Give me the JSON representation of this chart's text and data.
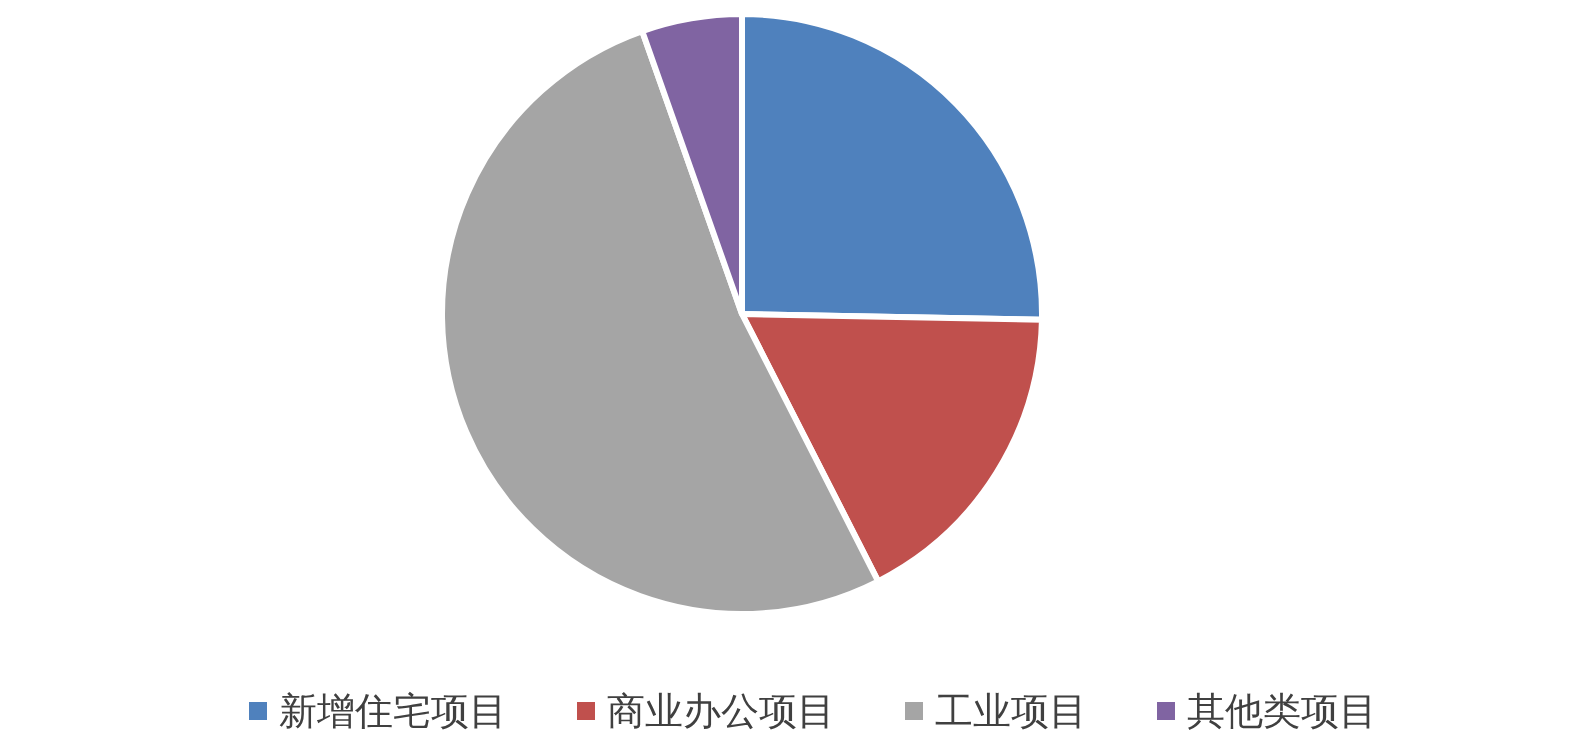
{
  "chart_data": {
    "type": "pie",
    "categories": [
      "新增住宅项目",
      "商业办公项目",
      "工业项目",
      "其他类项目"
    ],
    "values": [
      25.3,
      17.2,
      52.1,
      5.4
    ],
    "colors": [
      "#4f81bd",
      "#c0504d",
      "#a5a5a5",
      "#8064a2"
    ],
    "legend": "bottom"
  }
}
